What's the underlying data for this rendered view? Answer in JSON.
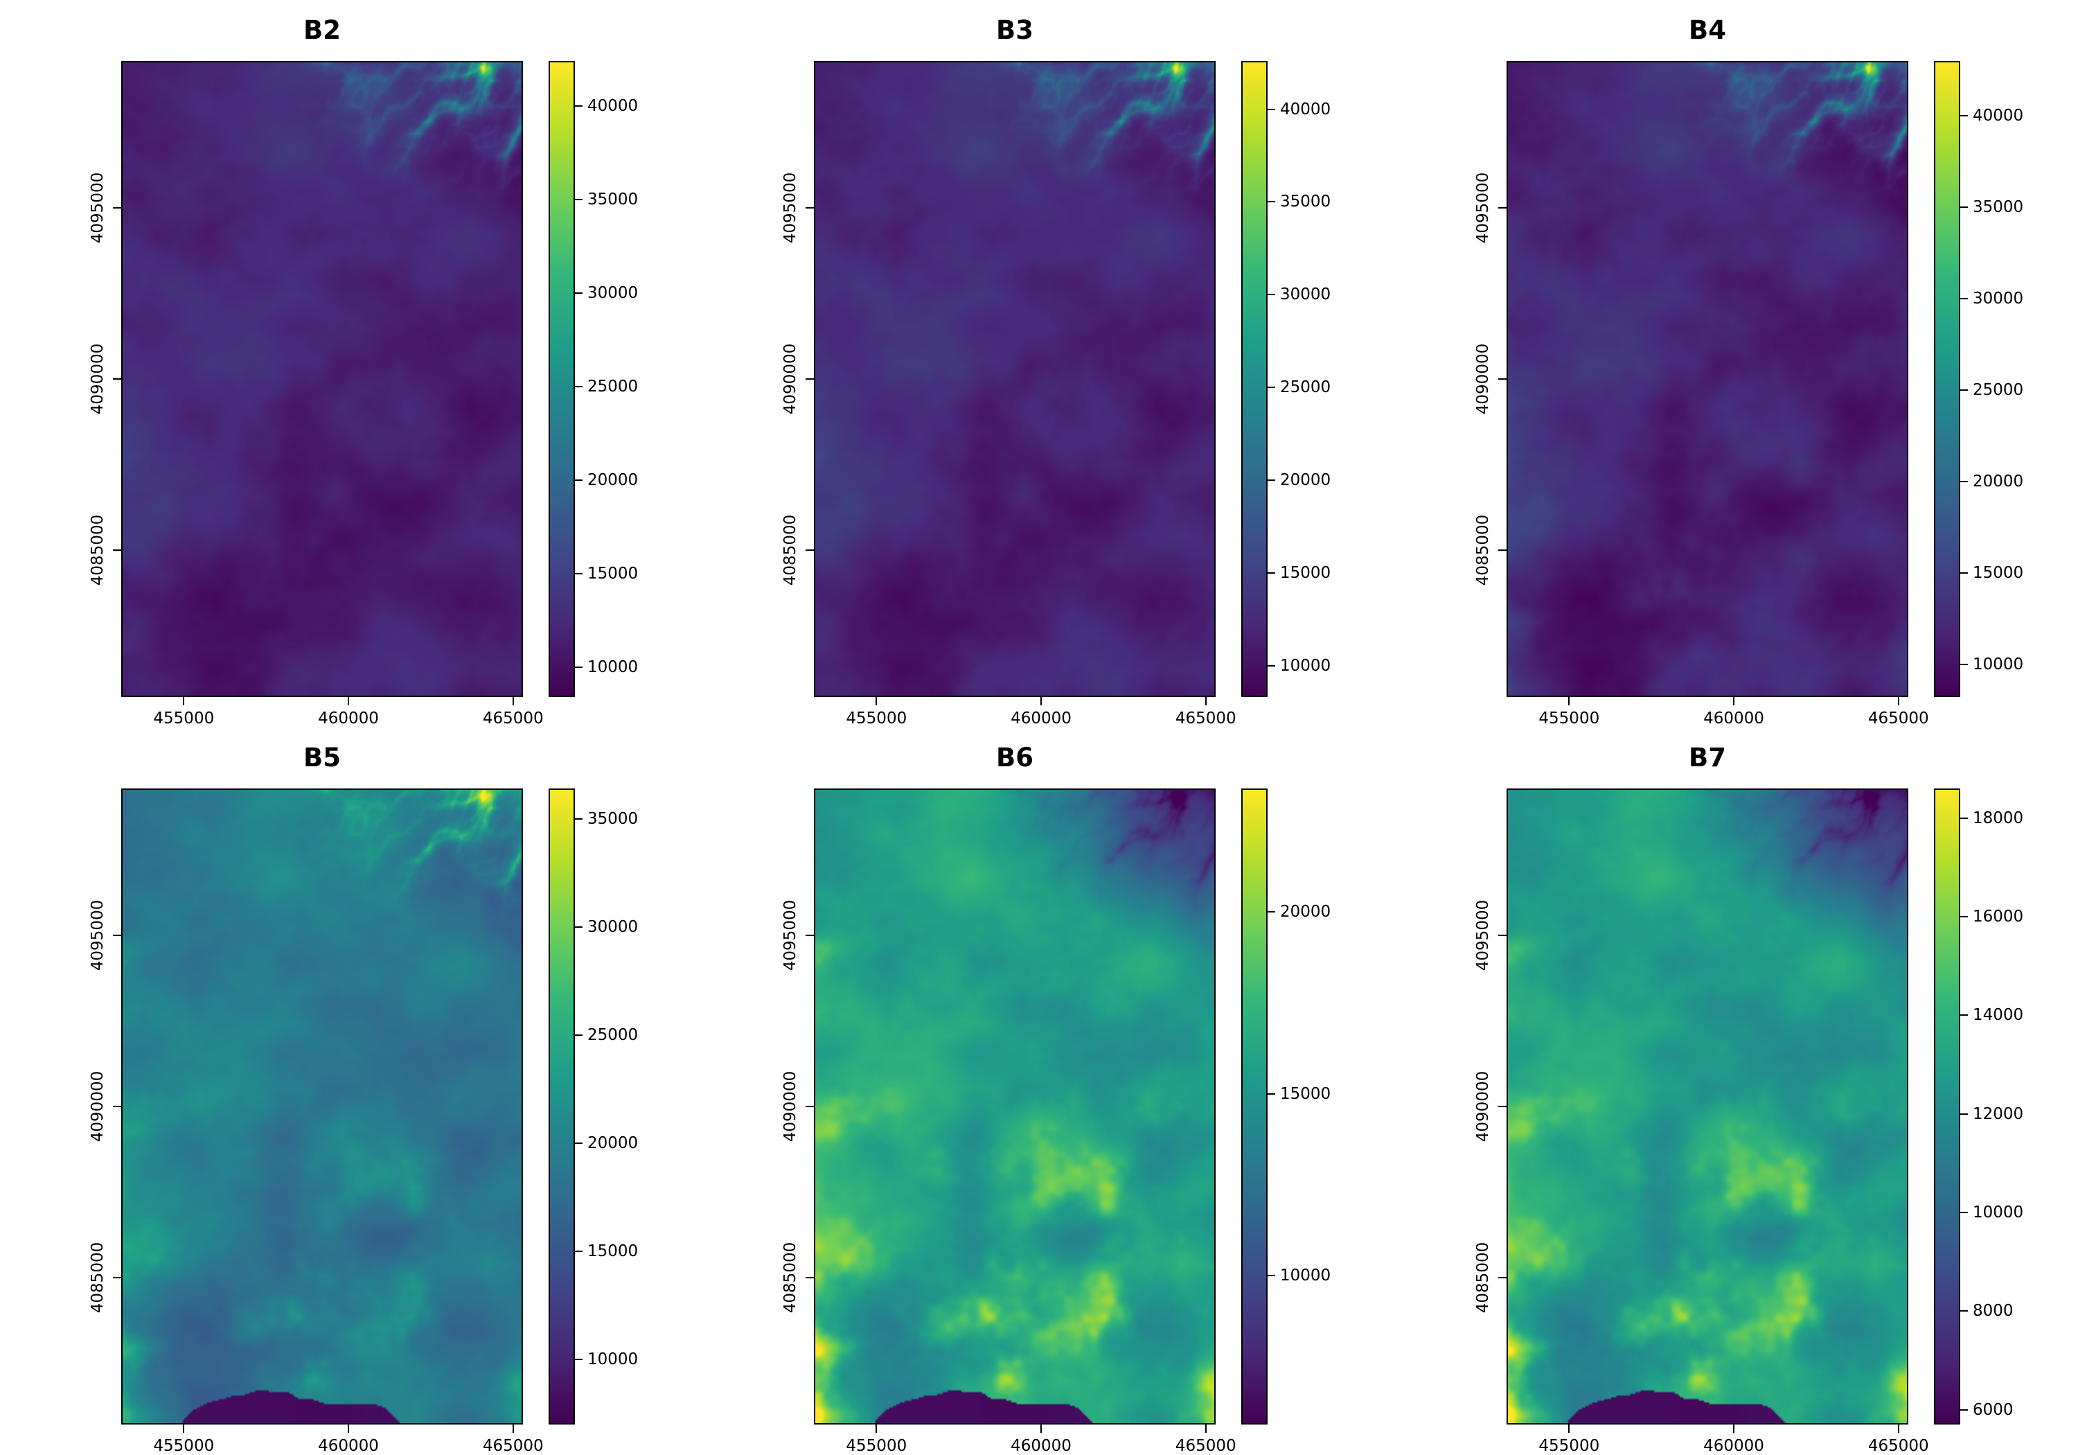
{
  "figure": {
    "background": "#ffffff",
    "axis_color": "#000000",
    "palette_name": "viridis",
    "palette_stops": [
      "#440154",
      "#482878",
      "#3e4989",
      "#31688e",
      "#26828e",
      "#1f9e89",
      "#35b779",
      "#6ece58",
      "#b5de2b",
      "#fde725"
    ]
  },
  "chart_data": [
    {
      "type": "heatmap",
      "title": "B2",
      "x_ticks": [
        455000,
        460000,
        465000
      ],
      "y_ticks": [
        4095000,
        4090000,
        4085000
      ],
      "xlim": [
        453100,
        465300
      ],
      "ylim": [
        4080700,
        4099300
      ],
      "colorbar_ticks": [
        40000,
        35000,
        30000,
        25000,
        20000,
        15000,
        10000
      ],
      "vmin": 8400,
      "vmax": 42400,
      "legend_position": "right",
      "description": "Mostly dark purple reflectance raster with bright yellow-green dendritic ridge network in the upper-right corner",
      "appearance": {
        "base": 0.1,
        "amp": 0.09,
        "tr": 0.95,
        "trSign": 1,
        "patches": 0,
        "lake": false,
        "off": 0
      }
    },
    {
      "type": "heatmap",
      "title": "B3",
      "x_ticks": [
        455000,
        460000,
        465000
      ],
      "y_ticks": [
        4095000,
        4090000,
        4085000
      ],
      "xlim": [
        453100,
        465300
      ],
      "ylim": [
        4080700,
        4099300
      ],
      "colorbar_ticks": [
        40000,
        35000,
        30000,
        25000,
        20000,
        15000,
        10000
      ],
      "vmin": 8300,
      "vmax": 42600,
      "legend_position": "right",
      "description": "Mostly dark purple reflectance raster with bright yellow-green dendritic ridge network in the upper-right corner",
      "appearance": {
        "base": 0.11,
        "amp": 0.1,
        "tr": 1.0,
        "trSign": 1,
        "patches": 0,
        "lake": false,
        "off": 0.04
      }
    },
    {
      "type": "heatmap",
      "title": "B4",
      "x_ticks": [
        455000,
        460000,
        465000
      ],
      "y_ticks": [
        4095000,
        4090000,
        4085000
      ],
      "xlim": [
        453100,
        465300
      ],
      "ylim": [
        4080700,
        4099300
      ],
      "colorbar_ticks": [
        40000,
        35000,
        30000,
        25000,
        20000,
        15000,
        10000
      ],
      "vmin": 8200,
      "vmax": 43000,
      "legend_position": "right",
      "description": "Mostly dark purple reflectance raster with bright yellow-green dendritic ridge network in the upper-right corner",
      "appearance": {
        "base": 0.1,
        "amp": 0.11,
        "tr": 1.0,
        "trSign": 1,
        "patches": 0.08,
        "lake": false,
        "off": 0.08
      }
    },
    {
      "type": "heatmap",
      "title": "B5",
      "x_ticks": [
        455000,
        460000,
        465000
      ],
      "y_ticks": [
        4095000,
        4090000,
        4085000
      ],
      "xlim": [
        453100,
        465300
      ],
      "ylim": [
        4080700,
        4099300
      ],
      "colorbar_ticks": [
        35000,
        30000,
        25000,
        20000,
        15000,
        10000
      ],
      "vmin": 7000,
      "vmax": 36400,
      "legend_position": "right",
      "description": "Teal-green raster with bright yellow ridges in the upper-right and a dark reservoir along the bottom edge",
      "appearance": {
        "base": 0.4,
        "amp": 0.14,
        "tr": 0.8,
        "trSign": 1,
        "patches": 0.22,
        "lake": true,
        "off": 0.12
      }
    },
    {
      "type": "heatmap",
      "title": "B6",
      "x_ticks": [
        455000,
        460000,
        465000
      ],
      "y_ticks": [
        4095000,
        4090000,
        4085000
      ],
      "xlim": [
        453100,
        465300
      ],
      "ylim": [
        4080700,
        4099300
      ],
      "colorbar_ticks": [
        20000,
        15000,
        10000
      ],
      "vmin": 5900,
      "vmax": 23400,
      "legend_position": "right",
      "description": "Green raster with dark purple mountainous area in the upper-right, bright yellow patches toward the bottom and a dark reservoir on the bottom edge",
      "appearance": {
        "base": 0.55,
        "amp": 0.16,
        "tr": 0.95,
        "trSign": -1,
        "patches": 0.45,
        "lake": true,
        "off": 0.16
      }
    },
    {
      "type": "heatmap",
      "title": "B7",
      "x_ticks": [
        455000,
        460000,
        465000
      ],
      "y_ticks": [
        4095000,
        4090000,
        4085000
      ],
      "xlim": [
        453100,
        465300
      ],
      "ylim": [
        4080700,
        4099300
      ],
      "colorbar_ticks": [
        18000,
        16000,
        14000,
        12000,
        10000,
        8000,
        6000
      ],
      "vmin": 5700,
      "vmax": 18600,
      "legend_position": "right",
      "description": "Green raster with dark purple mountainous area in the upper-right, bright yellow patches toward the bottom and a dark reservoir on the bottom edge",
      "appearance": {
        "base": 0.54,
        "amp": 0.16,
        "tr": 0.95,
        "trSign": -1,
        "patches": 0.45,
        "lake": true,
        "off": 0.2
      }
    }
  ]
}
